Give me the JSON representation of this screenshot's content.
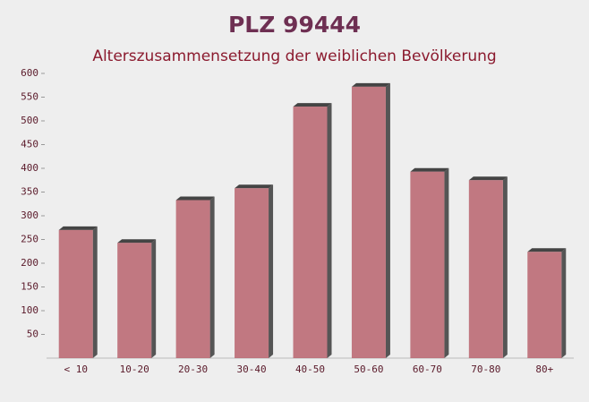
{
  "chart_data": {
    "type": "bar",
    "title": "PLZ 99444",
    "subtitle": "Alterszusammensetzung der weiblichen Bevölkerung",
    "categories": [
      "< 10",
      "10-20",
      "20-30",
      "30-40",
      "40-50",
      "50-60",
      "60-70",
      "70-80",
      "80+"
    ],
    "values": [
      270,
      243,
      333,
      358,
      530,
      572,
      393,
      375,
      224
    ],
    "color": "#b9636d",
    "ylim": [
      0,
      600
    ],
    "yticks": [
      50,
      100,
      150,
      200,
      250,
      300,
      350,
      400,
      450,
      500,
      550,
      600
    ]
  }
}
